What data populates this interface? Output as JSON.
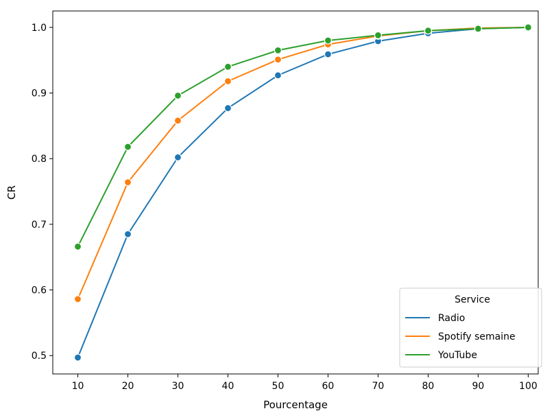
{
  "chart_data": {
    "type": "line",
    "title": "",
    "xlabel": "Pourcentage",
    "ylabel": "CR",
    "x": [
      10,
      20,
      30,
      40,
      50,
      60,
      70,
      80,
      90,
      100
    ],
    "xlim": [
      5,
      102
    ],
    "ylim": [
      0.472,
      1.025
    ],
    "xticks": [
      10,
      20,
      30,
      40,
      50,
      60,
      70,
      80,
      90,
      100
    ],
    "yticks": [
      0.5,
      0.6,
      0.7,
      0.8,
      0.9,
      1.0
    ],
    "ytick_labels": [
      "0.5",
      "0.6",
      "0.7",
      "0.8",
      "0.9",
      "1.0"
    ],
    "grid": false,
    "markers": true,
    "legend": {
      "title": "Service",
      "position": "lower-right"
    },
    "series": [
      {
        "name": "Radio",
        "color": "#1f77b4",
        "values": [
          0.497,
          0.685,
          0.802,
          0.877,
          0.927,
          0.959,
          0.979,
          0.991,
          0.998,
          1.0
        ]
      },
      {
        "name": "Spotify semaine",
        "color": "#ff7f0e",
        "values": [
          0.586,
          0.764,
          0.858,
          0.918,
          0.951,
          0.974,
          0.987,
          0.995,
          0.999,
          1.0
        ]
      },
      {
        "name": "YouTube",
        "color": "#2ca02c",
        "values": [
          0.666,
          0.818,
          0.896,
          0.94,
          0.965,
          0.98,
          0.988,
          0.995,
          0.998,
          1.0
        ]
      }
    ]
  }
}
